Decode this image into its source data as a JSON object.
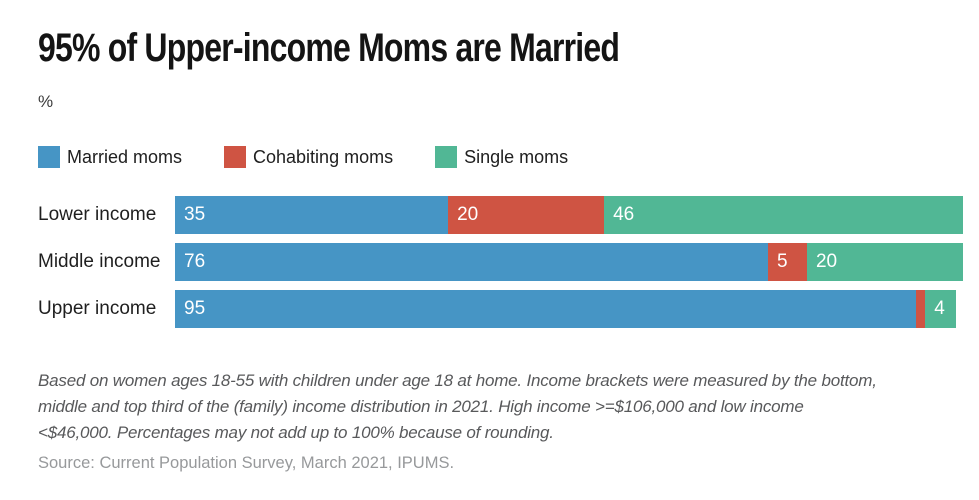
{
  "header": {
    "title": "95% of Upper-income Moms are Married",
    "unit_label": "%"
  },
  "chart_data": {
    "type": "bar",
    "stacked": true,
    "orientation": "horizontal",
    "title": "95% of Upper-income Moms are Married",
    "unit": "%",
    "categories": [
      "Lower income",
      "Middle income",
      "Upper income"
    ],
    "series": [
      {
        "name": "Married moms",
        "color": "#4695c5",
        "values": [
          35,
          76,
          95
        ]
      },
      {
        "name": "Cohabiting moms",
        "color": "#cf5443",
        "values": [
          20,
          5,
          1
        ]
      },
      {
        "name": "Single moms",
        "color": "#51b795",
        "values": [
          46,
          20,
          4
        ]
      }
    ],
    "value_labels": [
      [
        "35",
        "20",
        "46"
      ],
      [
        "76",
        "5",
        "20"
      ],
      [
        "95",
        "",
        "4"
      ]
    ],
    "axis_max": 101,
    "legend_position": "top",
    "grid": false,
    "background": "#ffffff"
  },
  "footer": {
    "note_lines": [
      "Based on women ages 18-55 with children under age 18 at home. Income brackets were measured by the bottom,",
      "middle and top third of the (family) income distribution in 2021. High income >=$106,000 and low income",
      "<$46,000. Percentages may not add up to 100% because of rounding."
    ],
    "source": "Source: Current Population Survey, March 2021, IPUMS."
  }
}
